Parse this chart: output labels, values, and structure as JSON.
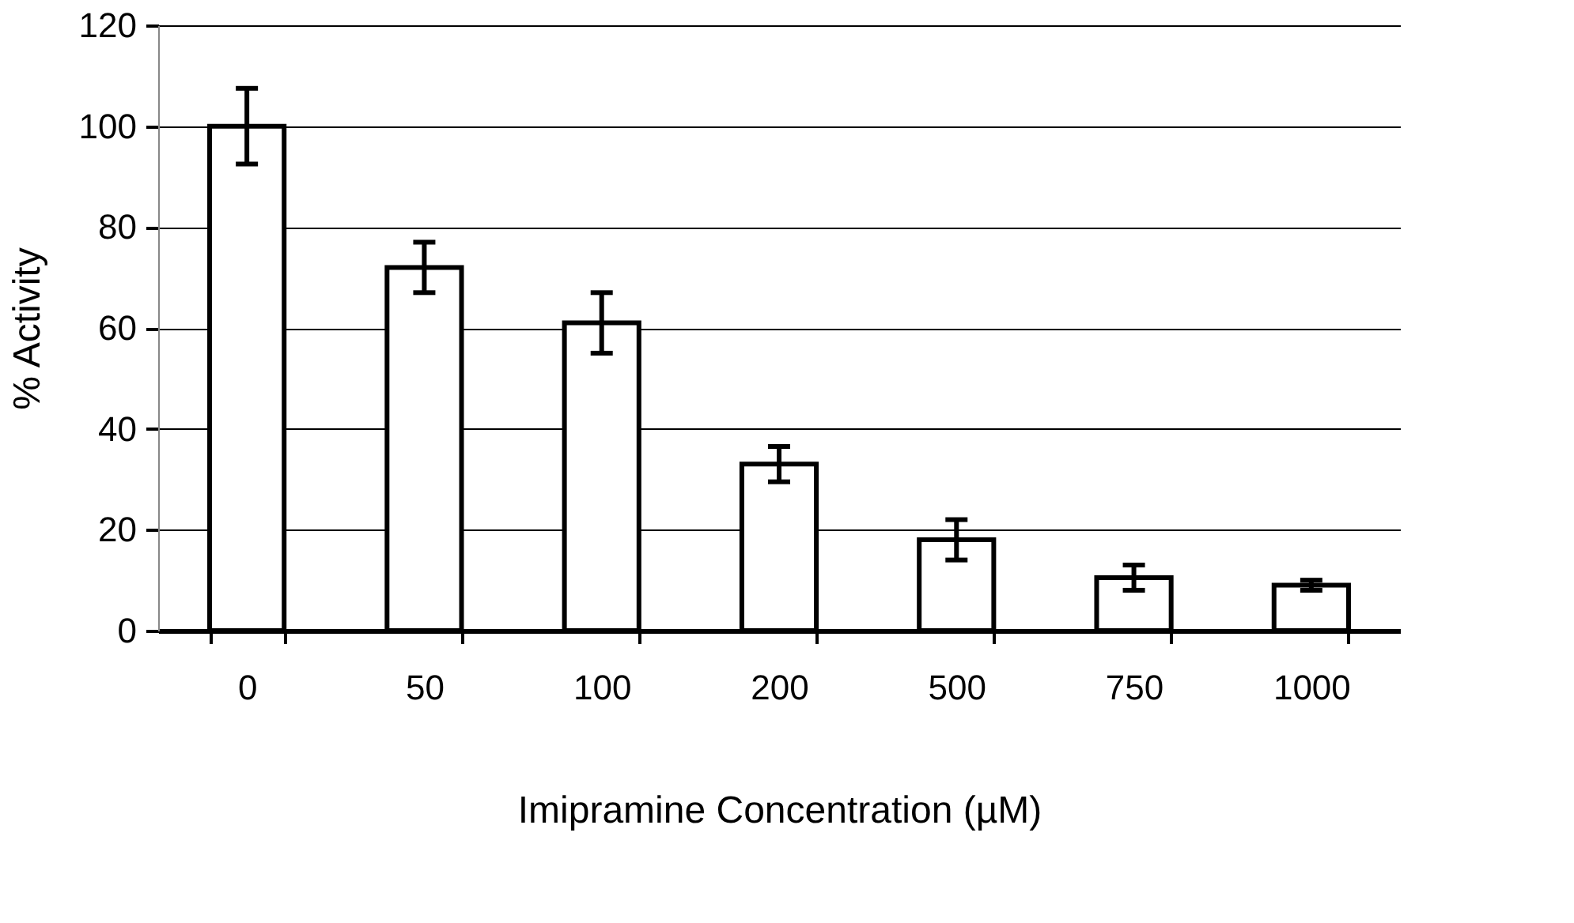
{
  "chart_data": {
    "type": "bar",
    "xlabel": "Imipramine Concentration (µM)",
    "ylabel": "% Activity",
    "categories": [
      "0",
      "50",
      "100",
      "200",
      "500",
      "750",
      "1000"
    ],
    "series": [
      {
        "color": "#ffffff",
        "values": [
          100,
          72,
          61,
          33,
          18,
          10.5,
          9
        ],
        "errors": [
          7.5,
          5,
          6,
          3.5,
          4,
          2.5,
          1
        ]
      }
    ],
    "ylim": [
      0,
      120
    ],
    "yticks": [
      0,
      20,
      40,
      60,
      80,
      100,
      120
    ],
    "grid": "y"
  }
}
